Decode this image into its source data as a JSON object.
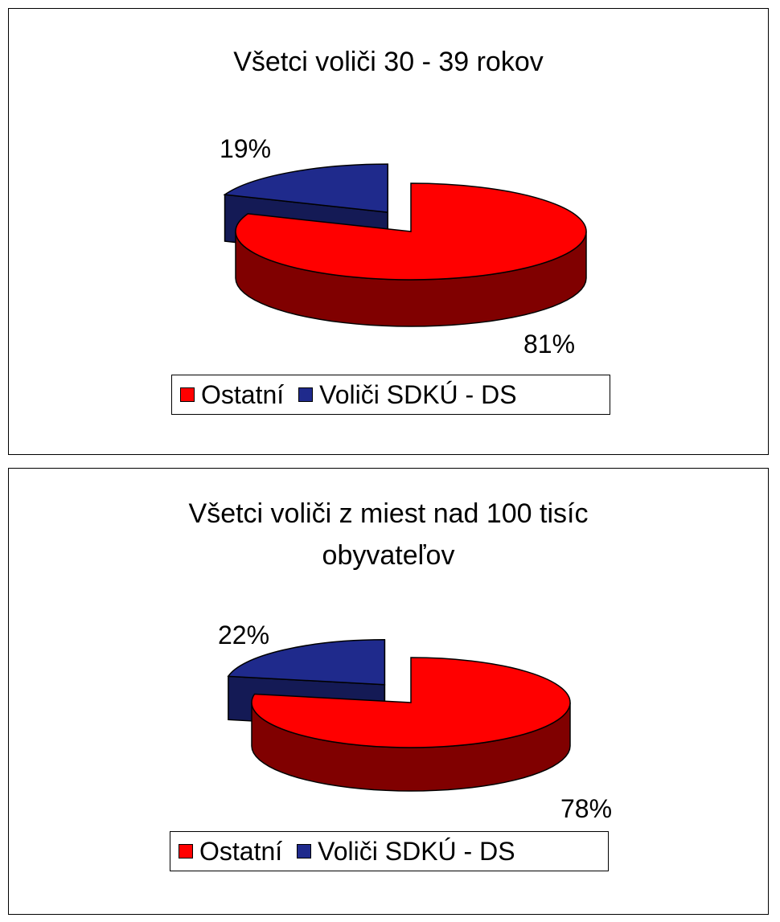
{
  "chart_data": [
    {
      "type": "pie",
      "title": "Všetci voliči 30 - 39 rokov",
      "slices": [
        {
          "name": "Ostatní",
          "value": 81,
          "label": "81%",
          "color": "#FF0000",
          "side_color": "#800000"
        },
        {
          "name": "Voliči SDKÚ - DS",
          "value": 19,
          "label": "19%",
          "color": "#1F2A8C",
          "side_color": "#141A55"
        }
      ],
      "legend": [
        "Ostatní",
        "Voliči SDKÚ - DS"
      ],
      "legend_placement": "bottom",
      "style": "3d-exploded"
    },
    {
      "type": "pie",
      "title": "Všetci voliči z miest nad 100 tisíc obyvateľov",
      "slices": [
        {
          "name": "Ostatní",
          "value": 78,
          "label": "78%",
          "color": "#FF0000",
          "side_color": "#800000"
        },
        {
          "name": "Voliči SDKÚ - DS",
          "value": 22,
          "label": "22%",
          "color": "#1F2A8C",
          "side_color": "#141A55"
        }
      ],
      "legend": [
        "Ostatní",
        "Voliči SDKÚ - DS"
      ],
      "legend_placement": "bottom",
      "style": "3d-exploded"
    }
  ]
}
